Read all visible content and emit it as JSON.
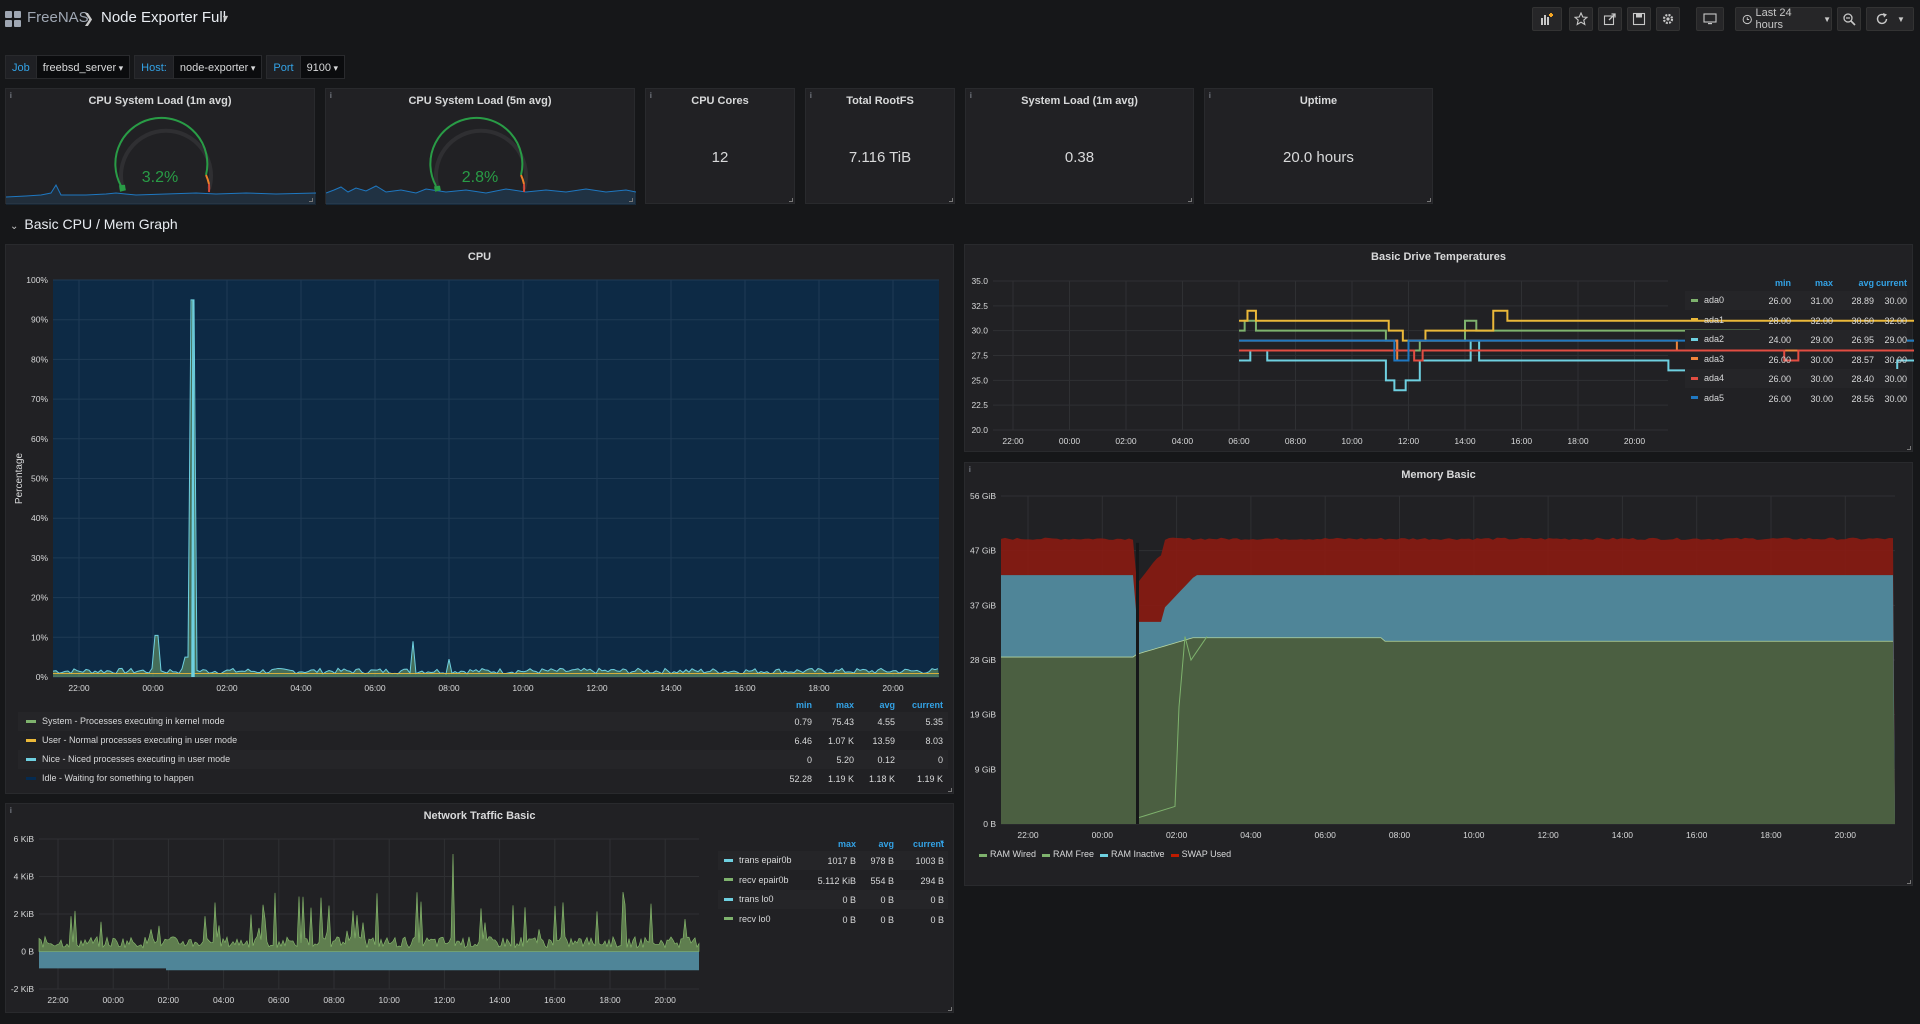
{
  "breadcrumb": {
    "app": "FreeNAS",
    "dashboard": "Node Exporter Full"
  },
  "toolbar": {
    "time_range": "Last 24 hours"
  },
  "variables": [
    {
      "label": "Job",
      "value": "freebsd_server"
    },
    {
      "label": "Host:",
      "value": "node-exporter"
    },
    {
      "label": "Port",
      "value": "9100"
    }
  ],
  "gauges": [
    {
      "title": "CPU System Load (1m avg)",
      "value": "3.2%"
    },
    {
      "title": "CPU System Load (5m avg)",
      "value": "2.8%"
    }
  ],
  "stats": [
    {
      "title": "CPU Cores",
      "value": "12"
    },
    {
      "title": "Total RootFS",
      "value": "7.116 TiB"
    },
    {
      "title": "System Load (1m avg)",
      "value": "0.38"
    },
    {
      "title": "Uptime",
      "value": "20.0 hours"
    }
  ],
  "row": {
    "title": "Basic CPU / Mem Graph"
  },
  "cpu": {
    "title": "CPU",
    "ylabel": "Percentage",
    "yticks": [
      "100%",
      "90%",
      "80%",
      "70%",
      "60%",
      "50%",
      "40%",
      "30%",
      "20%",
      "10%",
      "0%"
    ],
    "xticks": [
      "22:00",
      "00:00",
      "02:00",
      "04:00",
      "06:00",
      "08:00",
      "10:00",
      "12:00",
      "14:00",
      "16:00",
      "18:00",
      "20:00"
    ],
    "legend_headers": [
      "min",
      "max",
      "avg",
      "current"
    ],
    "legend": [
      {
        "name": "System - Processes executing in kernel mode",
        "color": "#7eb26d",
        "min": "0.79",
        "max": "75.43",
        "avg": "4.55",
        "current": "5.35"
      },
      {
        "name": "User - Normal processes executing in user mode",
        "color": "#eab839",
        "min": "6.46",
        "max": "1.07 K",
        "avg": "13.59",
        "current": "8.03"
      },
      {
        "name": "Nice - Niced processes executing in user mode",
        "color": "#6ed0e0",
        "min": "0",
        "max": "5.20",
        "avg": "0.12",
        "current": "0"
      },
      {
        "name": "Idle - Waiting for something to happen",
        "color": "#052b51",
        "min": "52.28",
        "max": "1.19 K",
        "avg": "1.18 K",
        "current": "1.19 K"
      }
    ]
  },
  "temps": {
    "title": "Basic Drive Temperatures",
    "yticks": [
      "35.0",
      "32.5",
      "30.0",
      "27.5",
      "25.0",
      "22.5",
      "20.0"
    ],
    "xticks": [
      "22:00",
      "00:00",
      "02:00",
      "04:00",
      "06:00",
      "08:00",
      "10:00",
      "12:00",
      "14:00",
      "16:00",
      "18:00",
      "20:00"
    ],
    "legend_headers": [
      "min",
      "max",
      "avg",
      "current"
    ],
    "legend": [
      {
        "name": "ada0",
        "color": "#7eb26d",
        "min": "26.00",
        "max": "31.00",
        "avg": "28.89",
        "current": "30.00"
      },
      {
        "name": "ada1",
        "color": "#eab839",
        "min": "28.00",
        "max": "32.00",
        "avg": "30.60",
        "current": "32.00"
      },
      {
        "name": "ada2",
        "color": "#6ed0e0",
        "min": "24.00",
        "max": "29.00",
        "avg": "26.95",
        "current": "29.00"
      },
      {
        "name": "ada3",
        "color": "#ef843c",
        "min": "26.00",
        "max": "30.00",
        "avg": "28.57",
        "current": "30.00"
      },
      {
        "name": "ada4",
        "color": "#e24d42",
        "min": "26.00",
        "max": "30.00",
        "avg": "28.40",
        "current": "30.00"
      },
      {
        "name": "ada5",
        "color": "#1f78c1",
        "min": "26.00",
        "max": "30.00",
        "avg": "28.56",
        "current": "30.00"
      }
    ]
  },
  "memory": {
    "title": "Memory Basic",
    "yticks": [
      "56 GiB",
      "47 GiB",
      "37 GiB",
      "28 GiB",
      "19 GiB",
      "9 GiB",
      "0 B"
    ],
    "xticks": [
      "22:00",
      "00:00",
      "02:00",
      "04:00",
      "06:00",
      "08:00",
      "10:00",
      "12:00",
      "14:00",
      "16:00",
      "18:00",
      "20:00"
    ],
    "legend": [
      {
        "name": "RAM Wired",
        "color": "#7eb26d"
      },
      {
        "name": "RAM Free",
        "color": "#7eb26d"
      },
      {
        "name": "RAM Inactive",
        "color": "#6ed0e0"
      },
      {
        "name": "SWAP Used",
        "color": "#bf1b00"
      }
    ]
  },
  "network": {
    "title": "Network Traffic Basic",
    "yticks": [
      "6 KiB",
      "4 KiB",
      "2 KiB",
      "0 B",
      "-2 KiB"
    ],
    "xticks": [
      "22:00",
      "00:00",
      "02:00",
      "04:00",
      "06:00",
      "08:00",
      "10:00",
      "12:00",
      "14:00",
      "16:00",
      "18:00",
      "20:00"
    ],
    "legend_headers": [
      "max",
      "avg",
      "current"
    ],
    "legend": [
      {
        "name": "trans epair0b",
        "color": "#6ed0e0",
        "max": "1017 B",
        "avg": "978 B",
        "current": "1003 B"
      },
      {
        "name": "recv epair0b",
        "color": "#7eb26d",
        "max": "5.112 KiB",
        "avg": "554 B",
        "current": "294 B"
      },
      {
        "name": "trans lo0",
        "color": "#6ed0e0",
        "max": "0 B",
        "avg": "0 B",
        "current": "0 B"
      },
      {
        "name": "recv lo0",
        "color": "#7eb26d",
        "max": "0 B",
        "avg": "0 B",
        "current": "0 B"
      }
    ]
  }
}
